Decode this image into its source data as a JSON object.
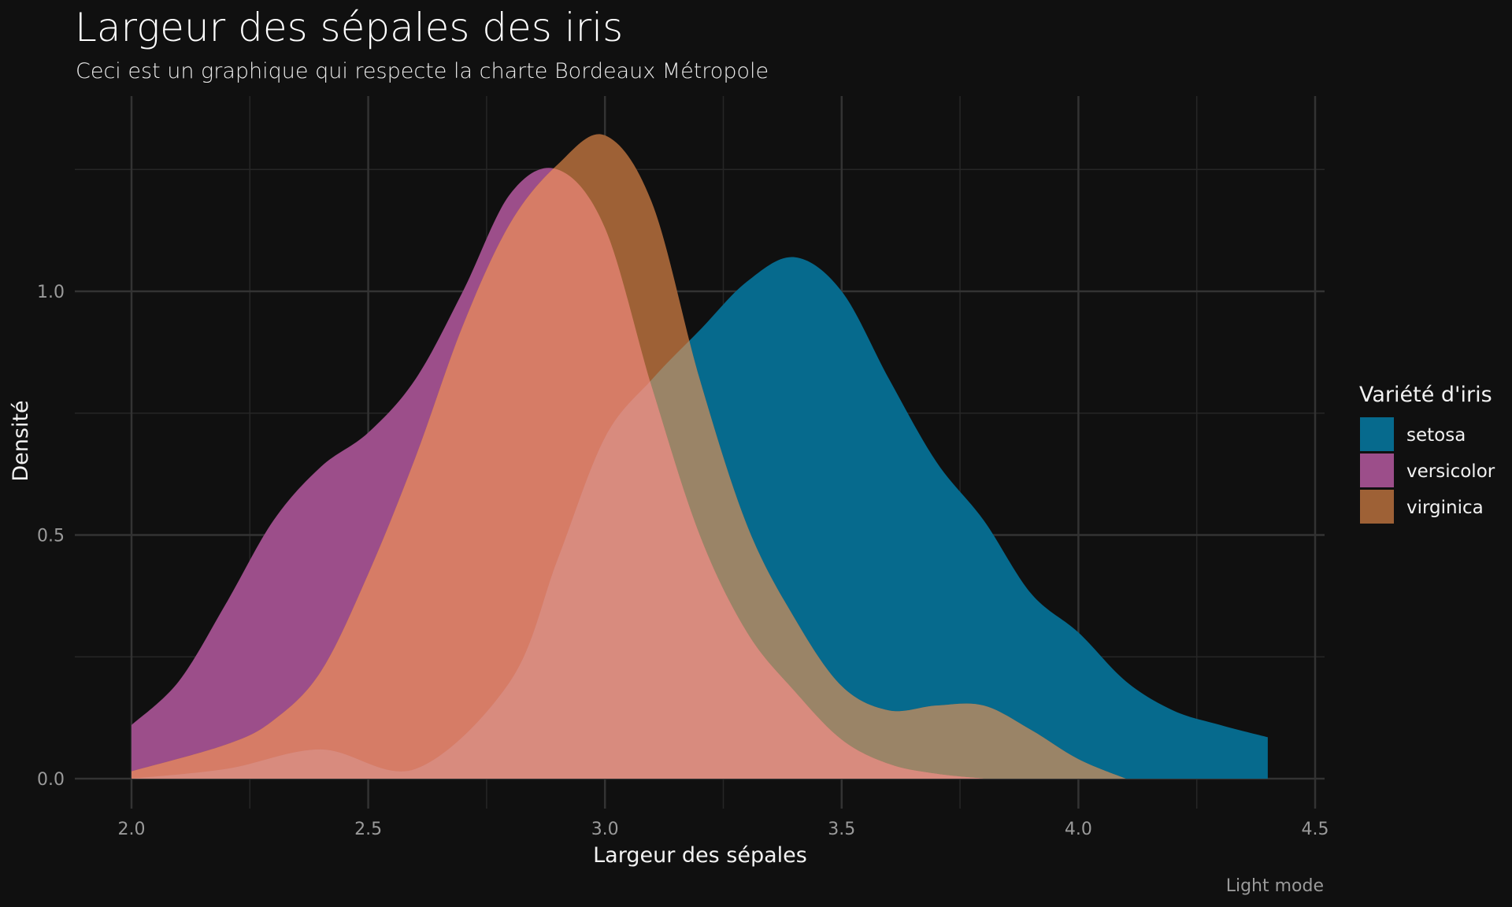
{
  "chart_data": {
    "type": "area",
    "title": "Largeur des sépales des iris",
    "subtitle": "Ceci est un graphique qui respecte la charte Bordeaux Métropole",
    "xlabel": "Largeur des sépales",
    "ylabel": "Densité",
    "caption": "Light mode",
    "xlim": [
      1.88,
      4.5
    ],
    "ylim": [
      -0.055,
      1.4
    ],
    "x_ticks": [
      "2.0",
      "2.5",
      "3.0",
      "3.5",
      "4.0",
      "4.5"
    ],
    "y_ticks": [
      "0.0",
      "0.5",
      "1.0"
    ],
    "grid": true,
    "legend": {
      "title": "Variété d'iris",
      "position": "right"
    },
    "series": [
      {
        "name": "setosa",
        "color": "#066a8d",
        "x": [
          2.0,
          2.2,
          2.4,
          2.6,
          2.8,
          2.9,
          3.0,
          3.1,
          3.2,
          3.3,
          3.4,
          3.5,
          3.6,
          3.7,
          3.8,
          3.9,
          4.0,
          4.1,
          4.2,
          4.3,
          4.4
        ],
        "y": [
          0.0,
          0.02,
          0.06,
          0.02,
          0.2,
          0.45,
          0.7,
          0.82,
          0.92,
          1.02,
          1.07,
          1.0,
          0.82,
          0.65,
          0.53,
          0.38,
          0.3,
          0.2,
          0.14,
          0.11,
          0.085
        ]
      },
      {
        "name": "versicolor",
        "color": "#9c4e8a",
        "x": [
          2.0,
          2.1,
          2.2,
          2.3,
          2.4,
          2.5,
          2.6,
          2.7,
          2.8,
          2.9,
          3.0,
          3.1,
          3.2,
          3.3,
          3.4,
          3.5,
          3.6,
          3.7,
          3.8
        ],
        "y": [
          0.11,
          0.2,
          0.36,
          0.53,
          0.64,
          0.71,
          0.82,
          1.0,
          1.2,
          1.25,
          1.13,
          0.8,
          0.5,
          0.3,
          0.18,
          0.08,
          0.03,
          0.01,
          0.0
        ]
      },
      {
        "name": "virginica",
        "color": "#9e6136",
        "x": [
          2.0,
          2.2,
          2.3,
          2.4,
          2.5,
          2.6,
          2.7,
          2.8,
          2.9,
          3.0,
          3.1,
          3.2,
          3.3,
          3.4,
          3.5,
          3.6,
          3.7,
          3.8,
          3.9,
          4.0,
          4.1
        ],
        "y": [
          0.015,
          0.07,
          0.12,
          0.22,
          0.42,
          0.66,
          0.93,
          1.14,
          1.26,
          1.32,
          1.18,
          0.82,
          0.52,
          0.33,
          0.19,
          0.14,
          0.15,
          0.15,
          0.1,
          0.04,
          0.0
        ]
      }
    ],
    "overlap_fill": "#d88b7e"
  }
}
